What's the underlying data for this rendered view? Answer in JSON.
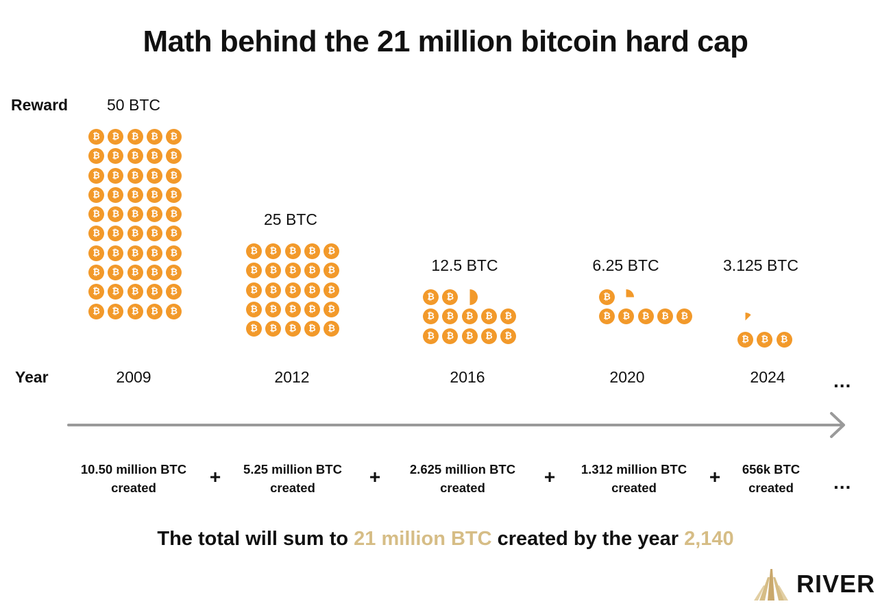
{
  "title": "Math behind the 21 million bitcoin hard cap",
  "labels": {
    "reward": "Reward",
    "year": "Year"
  },
  "coin_symbol": "₿",
  "colors": {
    "coin": "#F2992A",
    "highlight": "#D6BD86",
    "arrow": "#9A9A9A"
  },
  "epochs": [
    {
      "reward": "50 BTC",
      "reward_btc": 50,
      "year": "2009",
      "created_line1": "10.50 million BTC",
      "created_line2": "created"
    },
    {
      "reward": "25 BTC",
      "reward_btc": 25,
      "year": "2012",
      "created_line1": "5.25 million BTC",
      "created_line2": "created"
    },
    {
      "reward": "12.5 BTC",
      "reward_btc": 12.5,
      "year": "2016",
      "created_line1": "2.625 million BTC",
      "created_line2": "created"
    },
    {
      "reward": "6.25 BTC",
      "reward_btc": 6.25,
      "year": "2020",
      "created_line1": "1.312 million BTC",
      "created_line2": "created"
    },
    {
      "reward": "3.125 BTC",
      "reward_btc": 3.125,
      "year": "2024",
      "created_line1": "656k BTC",
      "created_line2": "created"
    }
  ],
  "operator": "+",
  "ellipsis": "...",
  "summary": {
    "part1": "The total will sum to ",
    "highlight1": "21 million BTC",
    "part2": " created by the year ",
    "highlight2": "2,140"
  },
  "logo": {
    "text": "RIVER",
    "icon": "river-mountain-icon"
  }
}
